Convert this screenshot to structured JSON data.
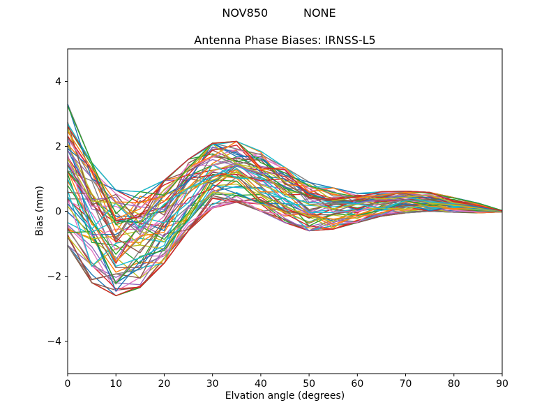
{
  "figure": {
    "suptitle": "NOV850          NONE"
  },
  "chart_data": {
    "type": "line",
    "title": "Antenna Phase Biases: IRNSS-L5",
    "xlabel": "Elvation angle (degrees)",
    "ylabel": "Bias (mm)",
    "xlim": [
      0,
      90
    ],
    "ylim": [
      -5,
      5
    ],
    "xticks": [
      0,
      10,
      20,
      30,
      40,
      50,
      60,
      70,
      80,
      90
    ],
    "xticklabels": [
      "0",
      "10",
      "20",
      "30",
      "40",
      "50",
      "60",
      "70",
      "80",
      "90"
    ],
    "yticks": [
      -4,
      -2,
      0,
      2,
      4
    ],
    "yticklabels": [
      "−4",
      "−2",
      "0",
      "2",
      "4"
    ],
    "grid": false,
    "legend": "none",
    "x": [
      0,
      5,
      10,
      15,
      20,
      25,
      30,
      35,
      40,
      45,
      50,
      55,
      60,
      65,
      70,
      75,
      80,
      85,
      90
    ],
    "ensemble": {
      "description": "Bundle of antenna phase bias curves, one per satellite/channel, spanning an envelope that dips near 10 deg, peaks near 30-35 deg and converges to 0 at 90 deg",
      "n_lines": 64,
      "seed": 1337,
      "upper": [
        3.3,
        1.5,
        0.65,
        0.6,
        0.95,
        1.6,
        2.1,
        2.15,
        1.85,
        1.35,
        0.9,
        0.72,
        0.55,
        0.6,
        0.62,
        0.58,
        0.42,
        0.25,
        0.02
      ],
      "lower": [
        -1.05,
        -2.2,
        -2.6,
        -2.35,
        -1.6,
        -0.6,
        0.1,
        0.28,
        0.0,
        -0.35,
        -0.6,
        -0.55,
        -0.35,
        -0.15,
        -0.05,
        0.0,
        -0.03,
        -0.05,
        -0.02
      ],
      "line_jitter": 0.12,
      "point_jitter": 0.22,
      "colors": [
        "#1f77b4",
        "#ff7f0e",
        "#2ca02c",
        "#d62728",
        "#9467bd",
        "#8c564b",
        "#e377c2",
        "#7f7f7f",
        "#bcbd22",
        "#17becf"
      ]
    }
  }
}
